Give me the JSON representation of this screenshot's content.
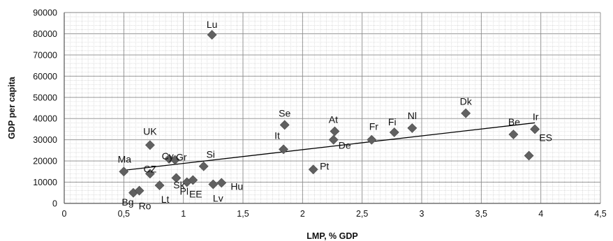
{
  "chart_data": {
    "type": "scatter",
    "title": "",
    "xlabel": "LMP, % GDP",
    "ylabel": "GDP per capita",
    "xlim": [
      0,
      4.5
    ],
    "ylim": [
      0,
      90000
    ],
    "x_ticks": [
      0,
      0.5,
      1,
      1.5,
      2,
      2.5,
      3,
      3.5,
      4,
      4.5
    ],
    "x_tick_labels": [
      "0",
      "0,5",
      "1",
      "1,5",
      "2",
      "2,5",
      "3",
      "3,5",
      "4",
      "4,5"
    ],
    "y_ticks": [
      0,
      10000,
      20000,
      30000,
      40000,
      50000,
      60000,
      70000,
      80000,
      90000
    ],
    "y_tick_labels": [
      "0",
      "10000",
      "20000",
      "30000",
      "40000",
      "50000",
      "60000",
      "70000",
      "80000",
      "90000"
    ],
    "grid": true,
    "marker_color": "#606060",
    "trendline": {
      "type": "linear",
      "x": [
        0.5,
        3.95
      ],
      "y": [
        15600,
        38000
      ]
    },
    "points": [
      {
        "label": "Lu",
        "x": 1.24,
        "y": 79500
      },
      {
        "label": "Se",
        "x": 1.85,
        "y": 37000
      },
      {
        "label": "Dk",
        "x": 3.37,
        "y": 42500
      },
      {
        "label": "Ir",
        "x": 3.95,
        "y": 35000
      },
      {
        "label": "Be",
        "x": 3.77,
        "y": 32500
      },
      {
        "label": "ES",
        "x": 3.9,
        "y": 22500
      },
      {
        "label": "Nl",
        "x": 2.92,
        "y": 35500
      },
      {
        "label": "Fi",
        "x": 2.77,
        "y": 33500
      },
      {
        "label": "Fr",
        "x": 2.58,
        "y": 30000
      },
      {
        "label": "At",
        "x": 2.27,
        "y": 34000
      },
      {
        "label": "De",
        "x": 2.26,
        "y": 30000
      },
      {
        "label": "It",
        "x": 1.84,
        "y": 25500
      },
      {
        "label": "Pt",
        "x": 2.09,
        "y": 16000
      },
      {
        "label": "UK",
        "x": 0.72,
        "y": 27500
      },
      {
        "label": "Cy",
        "x": 0.88,
        "y": 21000
      },
      {
        "label": "Gr",
        "x": 0.93,
        "y": 20500
      },
      {
        "label": "Si",
        "x": 1.17,
        "y": 17500
      },
      {
        "label": "Ma",
        "x": 0.5,
        "y": 15000
      },
      {
        "label": "CZ",
        "x": 0.72,
        "y": 14000
      },
      {
        "label": "Sk",
        "x": 0.94,
        "y": 12000
      },
      {
        "label": "Pl",
        "x": 1.03,
        "y": 10000
      },
      {
        "label": "EE",
        "x": 1.08,
        "y": 11000
      },
      {
        "label": "Hu",
        "x": 1.32,
        "y": 9700
      },
      {
        "label": "Lv",
        "x": 1.25,
        "y": 9000
      },
      {
        "label": "Lt",
        "x": 0.8,
        "y": 8500
      },
      {
        "label": "Bg",
        "x": 0.58,
        "y": 5000
      },
      {
        "label": "Ro",
        "x": 0.63,
        "y": 6000
      }
    ]
  }
}
